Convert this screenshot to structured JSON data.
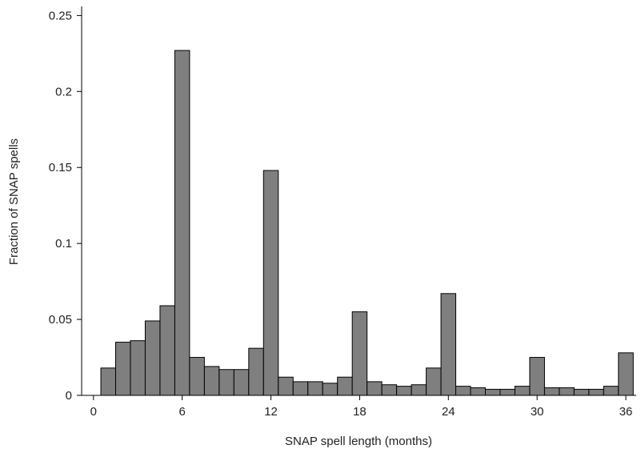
{
  "chart_data": {
    "type": "histogram",
    "xlabel": "SNAP spell length (months)",
    "ylabel": "Fraction of SNAP spells",
    "bins": [
      0.5,
      1.5,
      2.5,
      3.5,
      4.5,
      5.5,
      6.5,
      7.5,
      8.5,
      9.5,
      10.5,
      11.5,
      12.5,
      13.5,
      14.5,
      15.5,
      16.5,
      17.5,
      18.5,
      19.5,
      20.5,
      21.5,
      22.5,
      23.5,
      24.5,
      25.5,
      26.5,
      27.5,
      28.5,
      29.5,
      30.5,
      31.5,
      32.5,
      33.5,
      34.5,
      35.5,
      36.5
    ],
    "values": [
      0.018,
      0.035,
      0.036,
      0.049,
      0.059,
      0.227,
      0.025,
      0.019,
      0.017,
      0.017,
      0.031,
      0.148,
      0.012,
      0.009,
      0.009,
      0.008,
      0.012,
      0.055,
      0.009,
      0.007,
      0.006,
      0.007,
      0.018,
      0.067,
      0.006,
      0.005,
      0.004,
      0.004,
      0.006,
      0.025,
      0.005,
      0.005,
      0.004,
      0.004,
      0.006,
      0.028
    ],
    "color": "#7f7f7f",
    "xlim": [
      -0.8,
      36.7
    ],
    "xticks": [
      0,
      6,
      12,
      18,
      24,
      30,
      36
    ],
    "ylim": [
      0,
      0.256
    ],
    "yticks": [
      0,
      0.05,
      0.1,
      0.15,
      0.2,
      0.25
    ]
  }
}
